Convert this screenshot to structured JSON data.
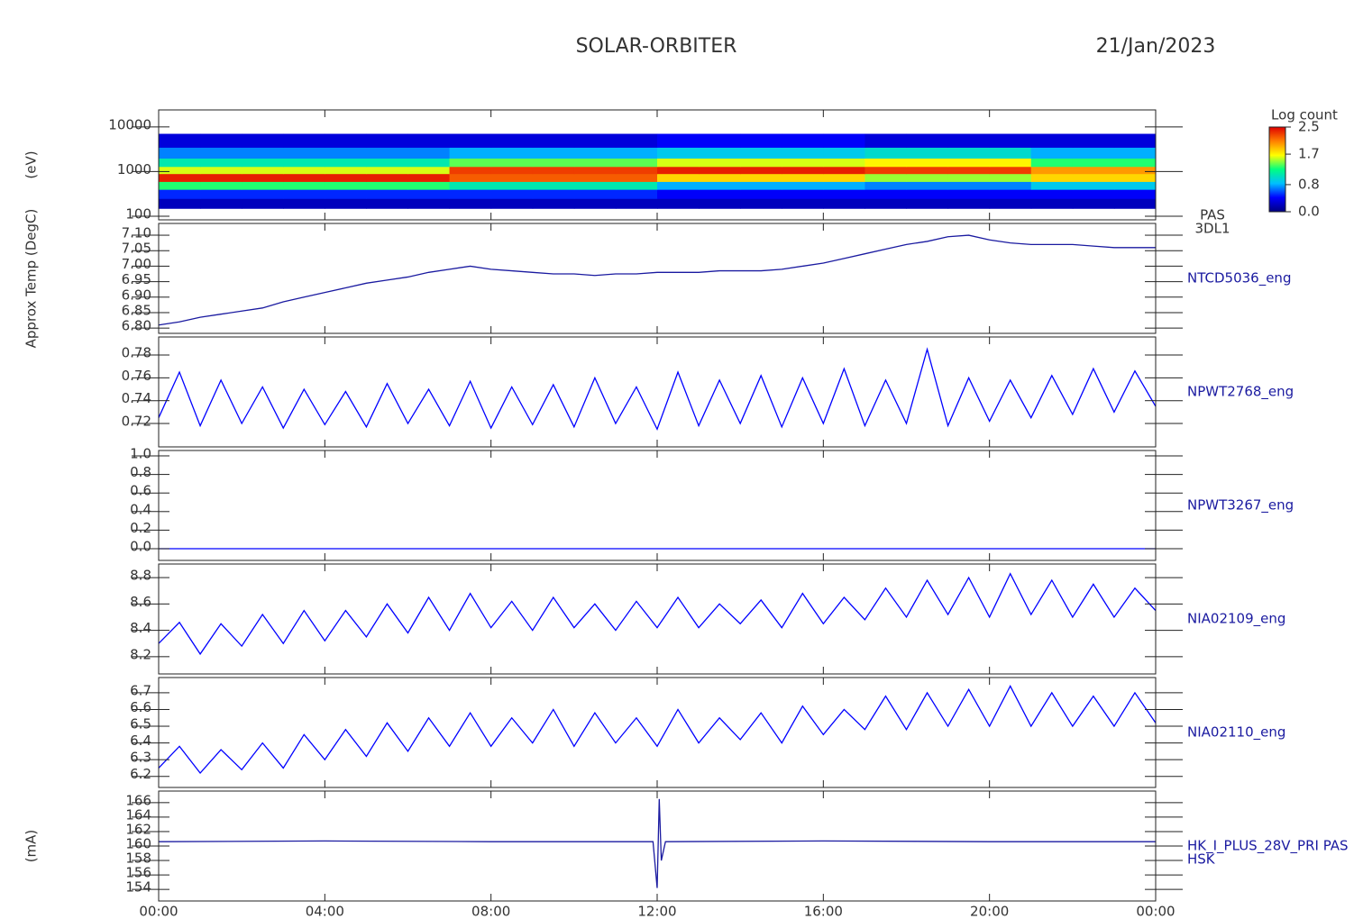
{
  "title": "SOLAR-ORBITER",
  "date": "21/Jan/2023",
  "xlim": [
    0,
    24
  ],
  "xticks": [
    {
      "value": 0,
      "label": "00:00"
    },
    {
      "value": 4,
      "label": "04:00"
    },
    {
      "value": 8,
      "label": "08:00"
    },
    {
      "value": 12,
      "label": "12:00"
    },
    {
      "value": 16,
      "label": "16:00"
    },
    {
      "value": 20,
      "label": "20:00"
    },
    {
      "value": 24,
      "label": "00:00"
    }
  ],
  "chart_data": [
    {
      "type": "heatmap",
      "log": true,
      "ylabel": "(eV)",
      "labels": [
        "PAS",
        "3DL1"
      ],
      "ylim": [
        83,
        24000
      ],
      "yticks": [
        100,
        1000,
        10000
      ],
      "xbins": [
        0,
        1,
        2,
        3,
        4,
        5,
        6,
        7,
        8,
        9,
        10,
        11,
        12,
        13,
        14,
        15,
        16,
        17,
        18,
        19,
        20,
        21,
        22,
        23,
        24
      ],
      "ybins": [
        150,
        250,
        400,
        600,
        900,
        1300,
        2000,
        3500,
        7000
      ],
      "z": [
        [
          0.2,
          0.2,
          0.2,
          0.2,
          0.2,
          0.2,
          0.2,
          0.2,
          0.2,
          0.2,
          0.2,
          0.2,
          0.2,
          0.2,
          0.2,
          0.2,
          0.2,
          0.2,
          0.2,
          0.2,
          0.2,
          0.2,
          0.2,
          0.2
        ],
        [
          0.5,
          0.5,
          0.5,
          0.5,
          0.5,
          0.5,
          0.5,
          0.5,
          0.5,
          0.5,
          0.5,
          0.5,
          0.4,
          0.4,
          0.4,
          0.4,
          0.4,
          0.4,
          0.4,
          0.4,
          0.4,
          0.4,
          0.4,
          0.4
        ],
        [
          1.3,
          1.3,
          1.3,
          1.3,
          1.3,
          1.3,
          1.3,
          1.1,
          1.1,
          1.1,
          1.1,
          1.1,
          0.8,
          0.8,
          0.8,
          0.8,
          0.8,
          0.7,
          0.7,
          0.7,
          0.7,
          0.9,
          0.9,
          0.9
        ],
        [
          2.4,
          2.4,
          2.4,
          2.4,
          2.4,
          2.4,
          2.4,
          2.2,
          2.2,
          2.2,
          2.2,
          2.2,
          1.8,
          1.8,
          1.8,
          1.8,
          1.8,
          1.5,
          1.5,
          1.5,
          1.5,
          1.8,
          1.8,
          1.8
        ],
        [
          1.6,
          1.6,
          1.6,
          1.6,
          1.6,
          1.6,
          1.6,
          2.3,
          2.3,
          2.3,
          2.3,
          2.3,
          2.4,
          2.4,
          2.4,
          2.4,
          2.4,
          2.3,
          2.3,
          2.3,
          2.3,
          2.0,
          2.0,
          2.0
        ],
        [
          1.1,
          1.1,
          1.1,
          1.1,
          1.1,
          1.1,
          1.1,
          1.4,
          1.4,
          1.4,
          1.4,
          1.4,
          1.6,
          1.6,
          1.6,
          1.6,
          1.6,
          1.7,
          1.7,
          1.7,
          1.7,
          1.3,
          1.3,
          1.3
        ],
        [
          0.7,
          0.7,
          0.7,
          0.7,
          0.7,
          0.7,
          0.7,
          0.8,
          0.8,
          0.8,
          0.8,
          0.8,
          0.9,
          0.9,
          0.9,
          0.9,
          0.9,
          1.0,
          1.0,
          1.0,
          1.0,
          0.8,
          0.8,
          0.8
        ],
        [
          0.3,
          0.3,
          0.3,
          0.3,
          0.3,
          0.3,
          0.3,
          0.3,
          0.3,
          0.3,
          0.3,
          0.3,
          0.4,
          0.4,
          0.4,
          0.4,
          0.4,
          0.3,
          0.3,
          0.3,
          0.3,
          0.3,
          0.3,
          0.3
        ]
      ],
      "colorbar_label": "Log count",
      "zlim": [
        0,
        2.5
      ],
      "colorbar_ticks": [
        {
          "value": 0,
          "label": "0.0"
        },
        0.8,
        1.7,
        2.5
      ],
      "colorscale": [
        "#000080",
        "#0000ff",
        "#00bfff",
        "#00ff80",
        "#ffff00",
        "#ff8000",
        "#e00000"
      ]
    },
    {
      "type": "line",
      "ylabel": "Approx Temp (DegC)",
      "ylim": [
        6.783,
        7.138
      ],
      "yticks": [
        {
          "value": 6.8,
          "label": "6.80"
        },
        6.85,
        {
          "value": 6.9,
          "label": "6.90"
        },
        6.95,
        {
          "value": 7.0,
          "label": "7.00"
        },
        7.05,
        {
          "value": 7.1,
          "label": "7.10"
        }
      ],
      "x": [
        0,
        0.5,
        1,
        1.5,
        2,
        2.5,
        3,
        3.5,
        4,
        4.5,
        5,
        5.5,
        6,
        6.5,
        7,
        7.5,
        8,
        8.5,
        9,
        9.5,
        10,
        10.5,
        11,
        11.5,
        12,
        12.5,
        13,
        13.5,
        14,
        14.5,
        15,
        15.5,
        16,
        16.5,
        17,
        17.5,
        18,
        18.5,
        19,
        19.5,
        20,
        20.5,
        21,
        21.5,
        22,
        22.5,
        23,
        23.5,
        24
      ],
      "series": [
        {
          "name": "NTCD5036_eng",
          "color": "#1a1aa0",
          "values": [
            6.81,
            6.82,
            6.835,
            6.845,
            6.855,
            6.865,
            6.885,
            6.9,
            6.915,
            6.93,
            6.945,
            6.955,
            6.965,
            6.98,
            6.99,
            7.0,
            6.99,
            6.985,
            6.98,
            6.975,
            6.975,
            6.97,
            6.975,
            6.975,
            6.98,
            6.98,
            6.98,
            6.985,
            6.985,
            6.985,
            6.99,
            7.0,
            7.01,
            7.025,
            7.04,
            7.055,
            7.07,
            7.08,
            7.095,
            7.1,
            7.085,
            7.075,
            7.07,
            7.07,
            7.07,
            7.065,
            7.06,
            7.06,
            7.06
          ]
        }
      ]
    },
    {
      "type": "line",
      "ylim": [
        0.6995,
        0.7958
      ],
      "yticks": [
        0.72,
        0.74,
        0.76,
        0.78
      ],
      "x": [
        0,
        0.5,
        1,
        1.5,
        2,
        2.5,
        3,
        3.5,
        4,
        4.5,
        5,
        5.5,
        6,
        6.5,
        7,
        7.5,
        8,
        8.5,
        9,
        9.5,
        10,
        10.5,
        11,
        11.5,
        12,
        12.5,
        13,
        13.5,
        14,
        14.5,
        15,
        15.5,
        16,
        16.5,
        17,
        17.5,
        18,
        18.5,
        19,
        19.5,
        20,
        20.5,
        21,
        21.5,
        22,
        22.5,
        23,
        23.5,
        24
      ],
      "series": [
        {
          "name": "NPWT2768_eng",
          "color": "#0000ff",
          "values": [
            0.725,
            0.765,
            0.718,
            0.758,
            0.72,
            0.752,
            0.716,
            0.75,
            0.719,
            0.748,
            0.717,
            0.755,
            0.72,
            0.75,
            0.718,
            0.757,
            0.716,
            0.752,
            0.719,
            0.754,
            0.717,
            0.76,
            0.72,
            0.752,
            0.715,
            0.765,
            0.718,
            0.758,
            0.72,
            0.762,
            0.717,
            0.76,
            0.72,
            0.768,
            0.718,
            0.758,
            0.72,
            0.785,
            0.718,
            0.76,
            0.722,
            0.758,
            0.725,
            0.762,
            0.728,
            0.768,
            0.73,
            0.766,
            0.735
          ]
        }
      ]
    },
    {
      "type": "line",
      "ylim": [
        -0.126,
        1.058
      ],
      "yticks": [
        {
          "value": 0,
          "label": "0.0"
        },
        0.2,
        0.4,
        0.6,
        0.8,
        {
          "value": 1,
          "label": "1.0"
        }
      ],
      "x": [
        0,
        24
      ],
      "series": [
        {
          "name": "NPWT3267_eng",
          "color": "#0000ff",
          "values": [
            0,
            0
          ]
        }
      ]
    },
    {
      "type": "line",
      "ylim": [
        8.069,
        8.903
      ],
      "yticks": [
        8.2,
        8.4,
        8.6,
        8.8
      ],
      "x": [
        0,
        0.5,
        1,
        1.5,
        2,
        2.5,
        3,
        3.5,
        4,
        4.5,
        5,
        5.5,
        6,
        6.5,
        7,
        7.5,
        8,
        8.5,
        9,
        9.5,
        10,
        10.5,
        11,
        11.5,
        12,
        12.5,
        13,
        13.5,
        14,
        14.5,
        15,
        15.5,
        16,
        16.5,
        17,
        17.5,
        18,
        18.5,
        19,
        19.5,
        20,
        20.5,
        21,
        21.5,
        22,
        22.5,
        23,
        23.5,
        24
      ],
      "series": [
        {
          "name": "NIA02109_eng",
          "color": "#0000ff",
          "values": [
            8.3,
            8.46,
            8.22,
            8.45,
            8.28,
            8.52,
            8.3,
            8.55,
            8.32,
            8.55,
            8.35,
            8.6,
            8.38,
            8.65,
            8.4,
            8.68,
            8.42,
            8.62,
            8.4,
            8.65,
            8.42,
            8.6,
            8.4,
            8.62,
            8.42,
            8.65,
            8.42,
            8.6,
            8.45,
            8.63,
            8.42,
            8.68,
            8.45,
            8.65,
            8.48,
            8.72,
            8.5,
            8.78,
            8.52,
            8.8,
            8.5,
            8.83,
            8.52,
            8.78,
            8.5,
            8.75,
            8.5,
            8.72,
            8.55
          ]
        }
      ]
    },
    {
      "type": "line",
      "ylim": [
        6.134,
        6.791
      ],
      "yticks": [
        6.2,
        6.3,
        6.4,
        6.5,
        6.6,
        6.7
      ],
      "x": [
        0,
        0.5,
        1,
        1.5,
        2,
        2.5,
        3,
        3.5,
        4,
        4.5,
        5,
        5.5,
        6,
        6.5,
        7,
        7.5,
        8,
        8.5,
        9,
        9.5,
        10,
        10.5,
        11,
        11.5,
        12,
        12.5,
        13,
        13.5,
        14,
        14.5,
        15,
        15.5,
        16,
        16.5,
        17,
        17.5,
        18,
        18.5,
        19,
        19.5,
        20,
        20.5,
        21,
        21.5,
        22,
        22.5,
        23,
        23.5,
        24
      ],
      "series": [
        {
          "name": "NIA02110_eng",
          "color": "#0000ff",
          "values": [
            6.25,
            6.38,
            6.22,
            6.36,
            6.24,
            6.4,
            6.25,
            6.45,
            6.3,
            6.48,
            6.32,
            6.52,
            6.35,
            6.55,
            6.38,
            6.58,
            6.38,
            6.55,
            6.4,
            6.6,
            6.38,
            6.58,
            6.4,
            6.55,
            6.38,
            6.6,
            6.4,
            6.55,
            6.42,
            6.58,
            6.4,
            6.62,
            6.45,
            6.6,
            6.48,
            6.68,
            6.48,
            6.7,
            6.5,
            6.72,
            6.5,
            6.74,
            6.5,
            6.7,
            6.5,
            6.68,
            6.5,
            6.7,
            6.52
          ]
        }
      ]
    },
    {
      "type": "line",
      "ylabel": "(mA)",
      "subname": "HSK",
      "ylim": [
        152.4,
        167.6
      ],
      "yticks": [
        154,
        156,
        158,
        160,
        162,
        164,
        166
      ],
      "x": [
        0,
        4,
        8,
        11.9,
        12.0,
        12.05,
        12.1,
        12.2,
        16,
        20,
        24
      ],
      "series": [
        {
          "name": "HK_I_PLUS_28V_PRI PAS",
          "color": "#1a1aa0",
          "values": [
            160.6,
            160.7,
            160.6,
            160.6,
            154.2,
            166.5,
            158,
            160.6,
            160.7,
            160.6,
            160.6
          ]
        }
      ]
    }
  ]
}
